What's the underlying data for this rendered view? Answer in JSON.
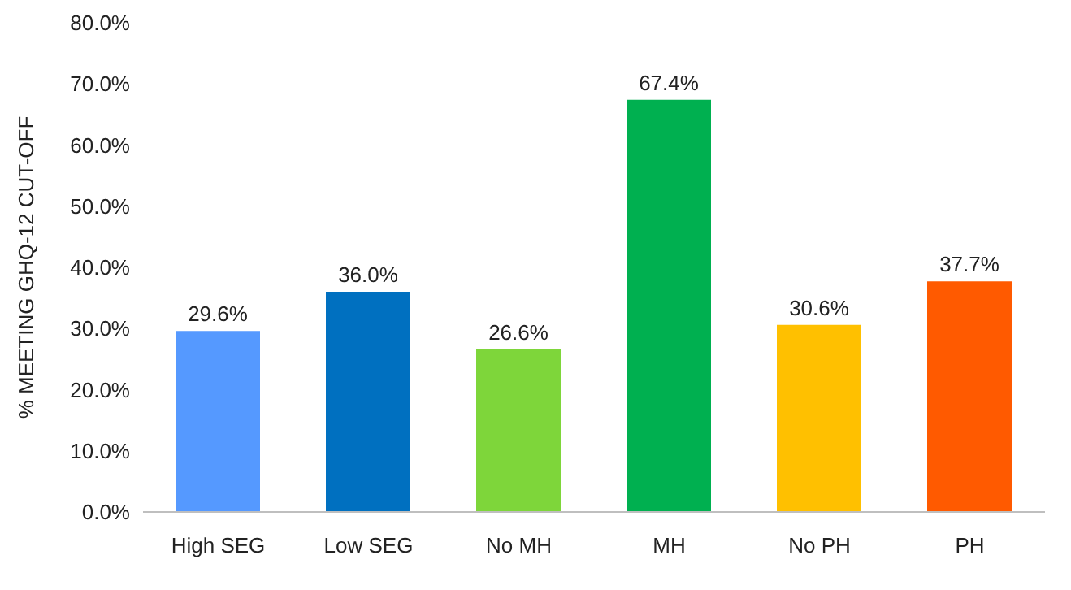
{
  "chart_data": {
    "type": "bar",
    "ylabel": "% MEETING GHQ-12 CUT-OFF",
    "categories": [
      "High SEG",
      "Low SEG",
      "No MH",
      "MH",
      "No PH",
      "PH"
    ],
    "values": [
      29.6,
      36.0,
      26.6,
      67.4,
      30.6,
      37.7
    ],
    "colors": [
      "#5599ff",
      "#0070c0",
      "#7ed63a",
      "#00b050",
      "#ffc000",
      "#ff5a00"
    ],
    "value_labels": [
      "29.6%",
      "36.0%",
      "26.6%",
      "67.4%",
      "30.6%",
      "37.7%"
    ],
    "ylim": [
      0,
      80
    ],
    "yticks": [
      {
        "value": 0,
        "label": "0.0%"
      },
      {
        "value": 10,
        "label": "10.0%"
      },
      {
        "value": 20,
        "label": "20.0%"
      },
      {
        "value": 30,
        "label": "30.0%"
      },
      {
        "value": 40,
        "label": "40.0%"
      },
      {
        "value": 50,
        "label": "50.0%"
      },
      {
        "value": 60,
        "label": "60.0%"
      },
      {
        "value": 70,
        "label": "70.0%"
      },
      {
        "value": 80,
        "label": "80.0%"
      }
    ],
    "grid": false,
    "legend": false
  }
}
